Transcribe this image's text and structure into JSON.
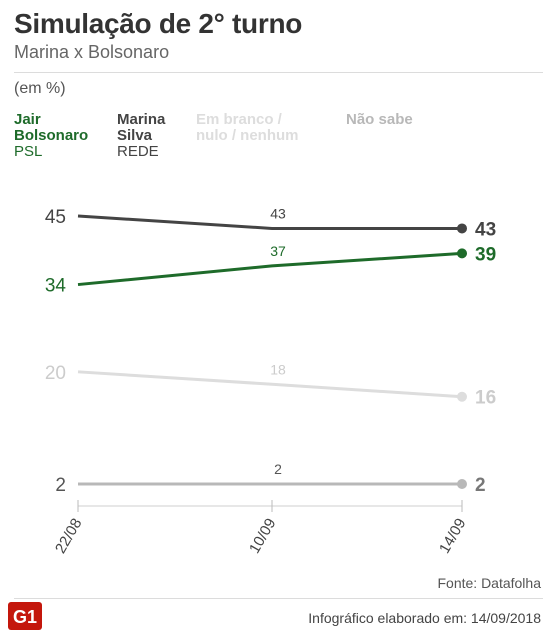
{
  "header": {
    "title": "Simulação de 2° turno",
    "subtitle": "Marina x Bolsonaro",
    "unit": "(em %)"
  },
  "legend": [
    {
      "name_line1": "Jair",
      "name_line2": "Bolsonaro",
      "party": "PSL",
      "color": "#1e6b2a"
    },
    {
      "name_line1": "Marina",
      "name_line2": "Silva",
      "party": "REDE",
      "color": "#444444"
    },
    {
      "name_line1": "Em branco /",
      "name_line2": "nulo / nenhum",
      "party": "",
      "color": "#dddddd"
    },
    {
      "name_line1": "Não sabe",
      "name_line2": "",
      "party": "",
      "color": "#b8b8b8"
    }
  ],
  "chart_data": {
    "type": "line",
    "x": [
      "22/08",
      "10/09",
      "14/09"
    ],
    "series": [
      {
        "name": "Marina Silva",
        "values": [
          45,
          43,
          43
        ],
        "color": "#444444",
        "first_label_color": "#444444",
        "mid_label_color": "#444444",
        "end_label_color": "#444444"
      },
      {
        "name": "Jair Bolsonaro",
        "values": [
          34,
          37,
          39
        ],
        "color": "#1e6b2a",
        "first_label_color": "#1e6b2a",
        "mid_label_color": "#1e6b2a",
        "end_label_color": "#1e6b2a"
      },
      {
        "name": "Em branco / nulo / nenhum",
        "values": [
          20,
          18,
          16
        ],
        "color": "#dddddd",
        "first_label_color": "#cccccc",
        "mid_label_color": "#cccccc",
        "end_label_color": "#cccccc"
      },
      {
        "name": "Não sabe",
        "values": [
          2,
          2,
          2
        ],
        "color": "#b8b8b8",
        "first_label_color": "#555555",
        "mid_label_color": "#555555",
        "end_label_color": "#777777"
      }
    ],
    "grid": false,
    "ylim": [
      0,
      48
    ]
  },
  "footer": {
    "source": "Fonte: Datafolha",
    "credit": "Infográfico elaborado em: 14/09/2018",
    "logo_text": "G1",
    "logo_color": "#c4170c"
  }
}
